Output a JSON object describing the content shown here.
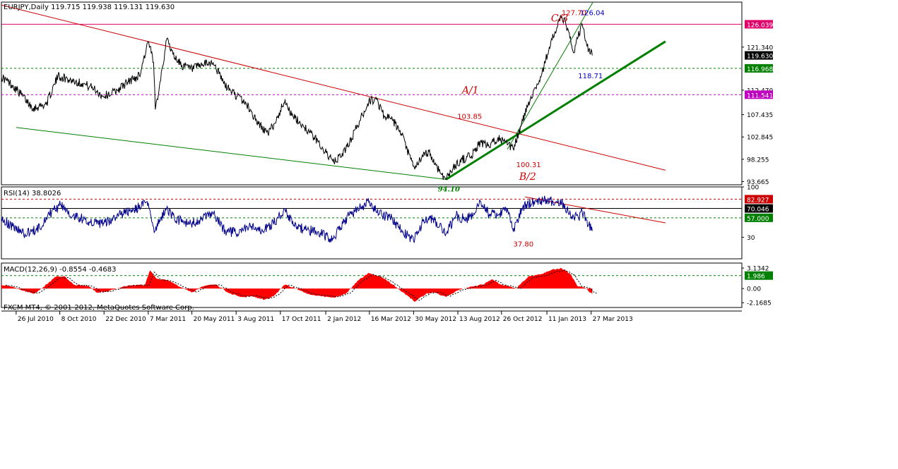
{
  "chart_data": [
    {
      "type": "line",
      "panel": "price",
      "header": "EURJPY,Daily  119.715 119.938 119.131 119.630",
      "y_ticks": [
        "121.340",
        "112.470",
        "107.435",
        "102.845",
        "98.255",
        "93.665"
      ],
      "ylim": [
        93.0,
        130.6
      ],
      "x_range": [
        "2010-07-01",
        "2013-03-31"
      ],
      "series": [
        {
          "points": [
            [
              "2010-07-01",
              115.2
            ],
            [
              "2010-07-20",
              113.5
            ],
            [
              "2010-08-24",
              108.8
            ],
            [
              "2010-09-15",
              109.6
            ],
            [
              "2010-10-05",
              115.4
            ],
            [
              "2010-10-25",
              114.6
            ],
            [
              "2010-11-15",
              113.9
            ],
            [
              "2010-12-05",
              112.8
            ],
            [
              "2010-12-20",
              111.2
            ],
            [
              "2011-01-10",
              112.2
            ],
            [
              "2011-02-01",
              114.2
            ],
            [
              "2011-02-20",
              115.5
            ],
            [
              "2011-03-07",
              122.5
            ],
            [
              "2011-03-16",
              118.2
            ],
            [
              "2011-03-19",
              108.5
            ],
            [
              "2011-04-08",
              123.2
            ],
            [
              "2011-04-18",
              119.8
            ],
            [
              "2011-05-03",
              117.6
            ],
            [
              "2011-05-20",
              116.8
            ],
            [
              "2011-06-10",
              117.8
            ],
            [
              "2011-06-25",
              118.2
            ],
            [
              "2011-07-15",
              113.5
            ],
            [
              "2011-08-05",
              111.2
            ],
            [
              "2011-08-20",
              109.7
            ],
            [
              "2011-09-10",
              105.5
            ],
            [
              "2011-09-26",
              103.5
            ],
            [
              "2011-10-10",
              106.2
            ],
            [
              "2011-10-25",
              110.6
            ],
            [
              "2011-11-05",
              107.2
            ],
            [
              "2011-11-25",
              105.2
            ],
            [
              "2011-12-20",
              101.8
            ],
            [
              "2012-01-05",
              99.2
            ],
            [
              "2012-01-16",
              97.5
            ],
            [
              "2012-02-05",
              100.2
            ],
            [
              "2012-02-25",
              105.2
            ],
            [
              "2012-03-15",
              110.2
            ],
            [
              "2012-03-28",
              110.6
            ],
            [
              "2012-04-10",
              107.2
            ],
            [
              "2012-04-25",
              106.2
            ],
            [
              "2012-05-10",
              103.2
            ],
            [
              "2012-05-25",
              98.2
            ],
            [
              "2012-06-01",
              96.2
            ],
            [
              "2012-06-10",
              98.2
            ],
            [
              "2012-06-25",
              99.9
            ],
            [
              "2012-07-05",
              97.2
            ],
            [
              "2012-07-24",
              94.1
            ],
            [
              "2012-08-05",
              96.5
            ],
            [
              "2012-08-20",
              98.2
            ],
            [
              "2012-09-05",
              99.0
            ],
            [
              "2012-09-20",
              101.8
            ],
            [
              "2012-10-05",
              100.8
            ],
            [
              "2012-10-20",
              102.8
            ],
            [
              "2012-11-05",
              101.2
            ],
            [
              "2012-11-15",
              100.31
            ],
            [
              "2012-12-01",
              106.2
            ],
            [
              "2012-12-15",
              111.2
            ],
            [
              "2013-01-01",
              115.2
            ],
            [
              "2013-01-15",
              121.3
            ],
            [
              "2013-01-25",
              124.5
            ],
            [
              "2013-02-05",
              127.7
            ],
            [
              "2013-02-15",
              125.2
            ],
            [
              "2013-02-25",
              120.2
            ],
            [
              "2013-03-05",
              123.5
            ],
            [
              "2013-03-12",
              126.04
            ],
            [
              "2013-03-20",
              121.5
            ],
            [
              "2013-03-29",
              119.63
            ]
          ]
        }
      ],
      "horizontal_lines": [
        {
          "value": 126.039,
          "label": "126.039",
          "color": "#e0006a",
          "style": "solid"
        },
        {
          "value": 116.968,
          "label": "116.968",
          "color": "#008000",
          "style": "dashed"
        },
        {
          "value": 111.541,
          "label": "111.541",
          "color": "#c000c0",
          "style": "dashed"
        }
      ],
      "current_price_label": {
        "value": 119.63,
        "label": "119.630",
        "color": "#000000"
      },
      "trendlines": [
        {
          "from": [
            "2010-07-01",
            130.0
          ],
          "to": [
            "2013-07-31",
            96.0
          ],
          "color": "#cc0000",
          "width": 1
        },
        {
          "from": [
            "2010-07-26",
            104.8
          ],
          "to": [
            "2012-07-24",
            94.1
          ],
          "color": "#008000",
          "width": 1
        },
        {
          "from": [
            "2012-07-24",
            94.1
          ],
          "to": [
            "2013-07-31",
            122.5
          ],
          "color": "#008000",
          "width": 3
        },
        {
          "from": [
            "2012-11-05",
            100.31
          ],
          "to": [
            "2013-03-30",
            130.6
          ],
          "color": "#008000",
          "width": 1
        }
      ],
      "annotations": [
        {
          "text": "127.70",
          "at": [
            "2013-02-05",
            127.9
          ],
          "color": "#cc0000"
        },
        {
          "text": "126.04",
          "at": [
            "2013-03-08",
            127.9
          ],
          "color": "#0000cc"
        },
        {
          "text": "C/3",
          "at": [
            "2013-01-18",
            126.6
          ],
          "color": "#cc0000",
          "style": "italic-serif"
        },
        {
          "text": "118.71",
          "at": [
            "2013-03-05",
            114.9
          ],
          "color": "#0000cc"
        },
        {
          "text": "A/1",
          "at": [
            "2012-08-20",
            111.8
          ],
          "color": "#cc0000",
          "style": "italic-serif"
        },
        {
          "text": "103.85",
          "at": [
            "2012-08-12",
            106.6
          ],
          "color": "#cc0000"
        },
        {
          "text": "100.31",
          "at": [
            "2012-11-20",
            96.6
          ],
          "color": "#cc0000"
        },
        {
          "text": "B/2",
          "at": [
            "2012-11-25",
            94.0
          ],
          "color": "#cc0000",
          "style": "italic-serif"
        },
        {
          "text": "94.10",
          "at": [
            "2012-07-10",
            91.6
          ],
          "color": "#008000",
          "style": "italic-serif"
        }
      ]
    },
    {
      "type": "line",
      "panel": "rsi",
      "header": "RSI(14) 38.8026",
      "y_ticks": [
        "100",
        "30"
      ],
      "ylim": [
        0,
        100
      ],
      "series": [
        {
          "points": [
            [
              "2010-07-01",
              55
            ],
            [
              "2010-07-20",
              45
            ],
            [
              "2010-08-10",
              35
            ],
            [
              "2010-08-30",
              40
            ],
            [
              "2010-09-20",
              62
            ],
            [
              "2010-10-10",
              75
            ],
            [
              "2010-10-30",
              60
            ],
            [
              "2010-11-20",
              55
            ],
            [
              "2010-12-10",
              48
            ],
            [
              "2010-12-30",
              52
            ],
            [
              "2011-01-20",
              62
            ],
            [
              "2011-02-10",
              68
            ],
            [
              "2011-03-07",
              78
            ],
            [
              "2011-03-18",
              38
            ],
            [
              "2011-04-05",
              70
            ],
            [
              "2011-04-25",
              55
            ],
            [
              "2011-05-15",
              48
            ],
            [
              "2011-06-05",
              55
            ],
            [
              "2011-06-25",
              62
            ],
            [
              "2011-07-15",
              40
            ],
            [
              "2011-08-05",
              35
            ],
            [
              "2011-08-25",
              45
            ],
            [
              "2011-09-15",
              38
            ],
            [
              "2011-10-05",
              50
            ],
            [
              "2011-10-25",
              68
            ],
            [
              "2011-11-10",
              45
            ],
            [
              "2011-12-01",
              40
            ],
            [
              "2011-12-20",
              38
            ],
            [
              "2012-01-10",
              28
            ],
            [
              "2012-01-20",
              35
            ],
            [
              "2012-02-10",
              60
            ],
            [
              "2012-03-01",
              72
            ],
            [
              "2012-03-15",
              78
            ],
            [
              "2012-04-01",
              62
            ],
            [
              "2012-04-20",
              58
            ],
            [
              "2012-05-10",
              40
            ],
            [
              "2012-05-30",
              25
            ],
            [
              "2012-06-15",
              52
            ],
            [
              "2012-07-01",
              55
            ],
            [
              "2012-07-24",
              35
            ],
            [
              "2012-08-10",
              60
            ],
            [
              "2012-08-25",
              55
            ],
            [
              "2012-09-10",
              62
            ],
            [
              "2012-09-20",
              80
            ],
            [
              "2012-10-05",
              62
            ],
            [
              "2012-10-20",
              60
            ],
            [
              "2012-11-05",
              70
            ],
            [
              "2012-11-15",
              37.8
            ],
            [
              "2012-12-01",
              72
            ],
            [
              "2012-12-20",
              80
            ],
            [
              "2013-01-10",
              82.9
            ],
            [
              "2013-01-25",
              78
            ],
            [
              "2013-02-05",
              80
            ],
            [
              "2013-02-20",
              62
            ],
            [
              "2013-03-05",
              58
            ],
            [
              "2013-03-12",
              65
            ],
            [
              "2013-03-29",
              38.8
            ]
          ]
        }
      ],
      "horizontal_lines": [
        {
          "value": 82.927,
          "label": "82.927",
          "color": "#cc0000",
          "style": "dashed"
        },
        {
          "value": 70.046,
          "label": "70.046",
          "color": "#000000",
          "style": "solid"
        },
        {
          "value": 57.0,
          "label": "57.000",
          "color": "#008000",
          "style": "dashed"
        }
      ],
      "trendlines": [
        {
          "from": [
            "2012-12-05",
            86.0
          ],
          "to": [
            "2013-07-31",
            50.0
          ],
          "color": "#cc0000",
          "width": 1
        }
      ],
      "annotations": [
        {
          "text": "37.80",
          "at": [
            "2012-11-15",
            17.0
          ],
          "color": "#cc0000"
        }
      ]
    },
    {
      "type": "area",
      "panel": "macd",
      "header": "MACD(12,26,9) -0.8554 -0.4683",
      "y_ticks": [
        "3.1342",
        "0.00",
        "-2.1685"
      ],
      "ylim": [
        -2.9,
        3.9
      ],
      "series": [
        {
          "points": [
            [
              "2010-07-01",
              0.6
            ],
            [
              "2010-07-20",
              0.3
            ],
            [
              "2010-08-05",
              -0.3
            ],
            [
              "2010-08-25",
              -0.8
            ],
            [
              "2010-09-10",
              0.2
            ],
            [
              "2010-10-01",
              1.8
            ],
            [
              "2010-10-15",
              1.9
            ],
            [
              "2010-11-01",
              0.6
            ],
            [
              "2010-11-25",
              0.4
            ],
            [
              "2010-12-10",
              -0.6
            ],
            [
              "2010-12-30",
              -0.4
            ],
            [
              "2011-01-20",
              0.2
            ],
            [
              "2011-02-10",
              0.6
            ],
            [
              "2011-03-01",
              0.5
            ],
            [
              "2011-03-10",
              2.8
            ],
            [
              "2011-03-20",
              1.6
            ],
            [
              "2011-04-10",
              1.2
            ],
            [
              "2011-05-01",
              0.2
            ],
            [
              "2011-05-20",
              -0.6
            ],
            [
              "2011-06-10",
              0.4
            ],
            [
              "2011-06-30",
              0.6
            ],
            [
              "2011-07-20",
              -0.6
            ],
            [
              "2011-08-10",
              -1.3
            ],
            [
              "2011-08-30",
              -1.2
            ],
            [
              "2011-09-20",
              -1.7
            ],
            [
              "2011-10-05",
              -1.2
            ],
            [
              "2011-10-25",
              0.6
            ],
            [
              "2011-11-10",
              0.1
            ],
            [
              "2011-12-01",
              -0.8
            ],
            [
              "2011-12-20",
              -1.1
            ],
            [
              "2012-01-15",
              -1.4
            ],
            [
              "2012-02-05",
              -0.8
            ],
            [
              "2012-02-25",
              1.2
            ],
            [
              "2012-03-15",
              2.4
            ],
            [
              "2012-04-05",
              1.8
            ],
            [
              "2012-04-25",
              0.6
            ],
            [
              "2012-05-15",
              -0.8
            ],
            [
              "2012-06-01",
              -2.0
            ],
            [
              "2012-06-20",
              -0.8
            ],
            [
              "2012-07-05",
              -0.6
            ],
            [
              "2012-07-24",
              -1.3
            ],
            [
              "2012-08-15",
              -0.2
            ],
            [
              "2012-09-05",
              0.3
            ],
            [
              "2012-09-25",
              0.6
            ],
            [
              "2012-10-10",
              1.4
            ],
            [
              "2012-10-25",
              0.6
            ],
            [
              "2012-11-10",
              0.3
            ],
            [
              "2012-11-20",
              0.0
            ],
            [
              "2012-12-10",
              1.8
            ],
            [
              "2013-01-01",
              2.2
            ],
            [
              "2013-01-20",
              2.9
            ],
            [
              "2013-02-05",
              3.1
            ],
            [
              "2013-02-20",
              2.2
            ],
            [
              "2013-03-05",
              0.3
            ],
            [
              "2013-03-15",
              0.2
            ],
            [
              "2013-03-29",
              -0.86
            ]
          ]
        }
      ],
      "horizontal_lines": [
        {
          "value": 1.986,
          "label": "1.986",
          "color": "#008000",
          "style": "dashed"
        }
      ],
      "fill_color": "#ff0000"
    }
  ],
  "x_ticks": [
    {
      "date": "2010-07-26",
      "label": "26 Jul 2010"
    },
    {
      "date": "2010-10-08",
      "label": "8 Oct 2010"
    },
    {
      "date": "2010-12-22",
      "label": "22 Dec 2010"
    },
    {
      "date": "2011-03-07",
      "label": "7 Mar 2011"
    },
    {
      "date": "2011-05-20",
      "label": "20 May 2011"
    },
    {
      "date": "2011-08-03",
      "label": "3 Aug 2011"
    },
    {
      "date": "2011-10-17",
      "label": "17 Oct 2011"
    },
    {
      "date": "2012-01-02",
      "label": "2 Jan 2012"
    },
    {
      "date": "2012-03-16",
      "label": "16 Mar 2012"
    },
    {
      "date": "2012-05-30",
      "label": "30 May 2012"
    },
    {
      "date": "2012-08-13",
      "label": "13 Aug 2012"
    },
    {
      "date": "2012-10-26",
      "label": "26 Oct 2012"
    },
    {
      "date": "2013-01-11",
      "label": "11 Jan 2013"
    },
    {
      "date": "2013-03-27",
      "label": "27 Mar 2013"
    }
  ],
  "footer": "FXCM MT4, © 2001-2012, MetaQuotes Software Corp."
}
